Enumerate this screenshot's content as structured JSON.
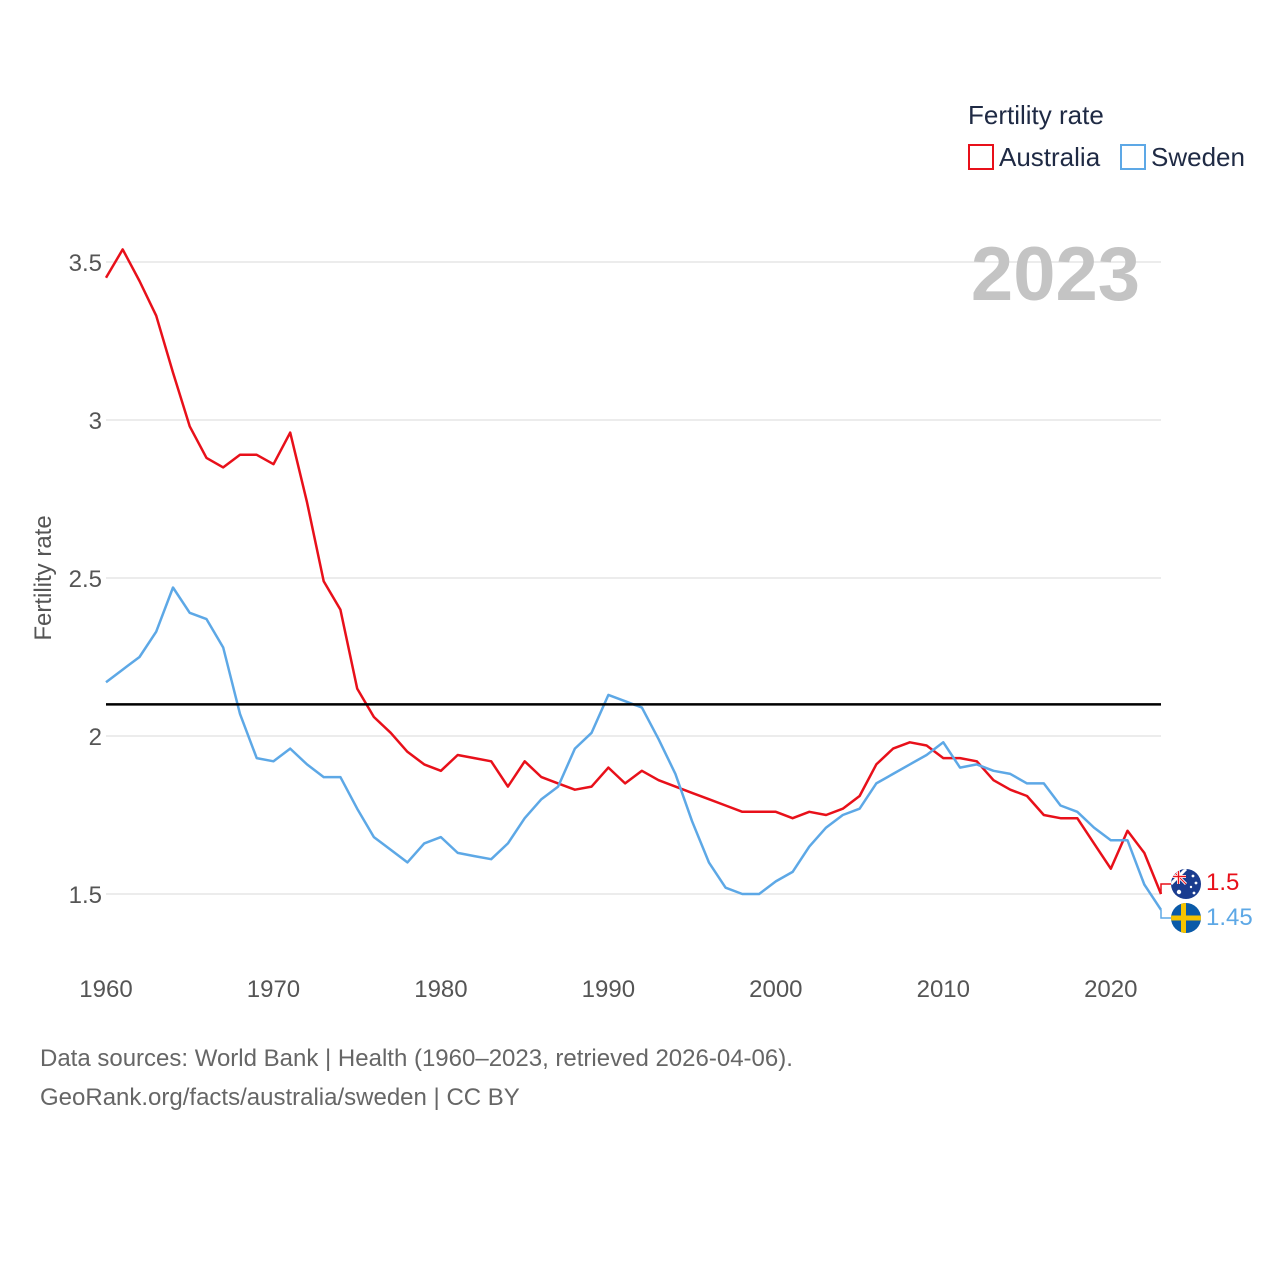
{
  "chart_data": {
    "type": "line",
    "legend_title": "Fertility rate",
    "ylabel": "Fertility rate",
    "year_overlay": "2023",
    "xlim": [
      1960,
      2023
    ],
    "ylim": [
      1.35,
      3.6
    ],
    "x_ticks": [
      1960,
      1970,
      1980,
      1990,
      2000,
      2010,
      2020
    ],
    "x_tick_labels": [
      "1960",
      "1970",
      "1980",
      "1990",
      "2000",
      "2010",
      "2020"
    ],
    "y_ticks": [
      1.5,
      2,
      2.5,
      3,
      3.5
    ],
    "y_tick_labels": [
      "1.5",
      "2",
      "2.5",
      "3",
      "3.5"
    ],
    "reference_line": 2.1,
    "x": [
      1960,
      1961,
      1962,
      1963,
      1964,
      1965,
      1966,
      1967,
      1968,
      1969,
      1970,
      1971,
      1972,
      1973,
      1974,
      1975,
      1976,
      1977,
      1978,
      1979,
      1980,
      1981,
      1982,
      1983,
      1984,
      1985,
      1986,
      1987,
      1988,
      1989,
      1990,
      1991,
      1992,
      1993,
      1994,
      1995,
      1996,
      1997,
      1998,
      1999,
      2000,
      2001,
      2002,
      2003,
      2004,
      2005,
      2006,
      2007,
      2008,
      2009,
      2010,
      2011,
      2012,
      2013,
      2014,
      2015,
      2016,
      2017,
      2018,
      2019,
      2020,
      2021,
      2022,
      2023
    ],
    "series": [
      {
        "name": "Australia",
        "color": "#e8101a",
        "end_label": "1.5",
        "flag": "australia-flag",
        "values": [
          3.45,
          3.54,
          3.44,
          3.33,
          3.15,
          2.98,
          2.88,
          2.85,
          2.89,
          2.89,
          2.86,
          2.96,
          2.74,
          2.49,
          2.4,
          2.15,
          2.06,
          2.01,
          1.95,
          1.91,
          1.89,
          1.94,
          1.93,
          1.92,
          1.84,
          1.92,
          1.87,
          1.85,
          1.83,
          1.84,
          1.9,
          1.85,
          1.89,
          1.86,
          1.84,
          1.82,
          1.8,
          1.78,
          1.76,
          1.76,
          1.76,
          1.74,
          1.76,
          1.75,
          1.77,
          1.81,
          1.91,
          1.96,
          1.98,
          1.97,
          1.93,
          1.93,
          1.92,
          1.86,
          1.83,
          1.81,
          1.75,
          1.74,
          1.74,
          1.66,
          1.58,
          1.7,
          1.63,
          1.5
        ]
      },
      {
        "name": "Sweden",
        "color": "#5da8e6",
        "end_label": "1.45",
        "flag": "sweden-flag",
        "values": [
          2.17,
          2.21,
          2.25,
          2.33,
          2.47,
          2.39,
          2.37,
          2.28,
          2.07,
          1.93,
          1.92,
          1.96,
          1.91,
          1.87,
          1.87,
          1.77,
          1.68,
          1.64,
          1.6,
          1.66,
          1.68,
          1.63,
          1.62,
          1.61,
          1.66,
          1.74,
          1.8,
          1.84,
          1.96,
          2.01,
          2.13,
          2.11,
          2.09,
          1.99,
          1.88,
          1.73,
          1.6,
          1.52,
          1.5,
          1.5,
          1.54,
          1.57,
          1.65,
          1.71,
          1.75,
          1.77,
          1.85,
          1.88,
          1.91,
          1.94,
          1.98,
          1.9,
          1.91,
          1.89,
          1.88,
          1.85,
          1.85,
          1.78,
          1.76,
          1.71,
          1.67,
          1.67,
          1.53,
          1.45
        ]
      }
    ]
  },
  "footer": {
    "sources": "Data sources: World Bank | Health (1960–2023, retrieved 2026-04-06).",
    "attribution": "GeoRank.org/facts/australia/sweden | CC BY"
  }
}
